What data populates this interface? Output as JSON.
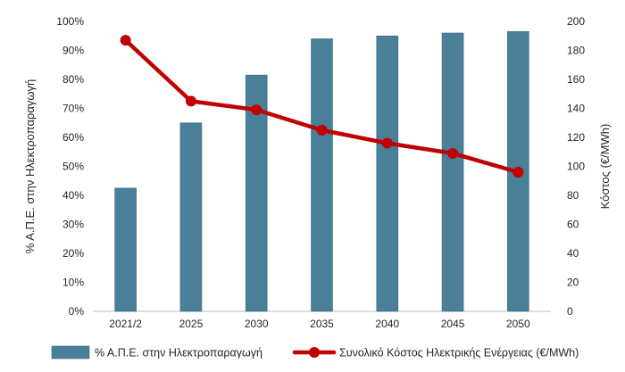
{
  "chart_data": {
    "type": "bar",
    "categories": [
      "2021/2",
      "2025",
      "2030",
      "2035",
      "2040",
      "2045",
      "2050"
    ],
    "series": [
      {
        "name": "% Α.Π.Ε. στην Ηλεκτροπαραγωγή",
        "type": "bar",
        "axis": "left",
        "values": [
          0.425,
          0.65,
          0.815,
          0.94,
          0.95,
          0.96,
          0.965
        ],
        "color": "#4a7f9a"
      },
      {
        "name": "Συνολικό Κόστος Ηλεκτρικής Ενέργειας (€/MWh)",
        "type": "line",
        "axis": "right",
        "values": [
          187,
          145,
          139,
          125,
          116,
          109,
          96
        ],
        "color": "#c00000"
      }
    ],
    "ylabel_left": "% Α.Π.Ε. στην Ηλεκτροπαραγωγή",
    "ylabel_right": "Κόστος (€/MWh)",
    "ylim_left": [
      0,
      1
    ],
    "yticks_left": [
      "0%",
      "10%",
      "20%",
      "30%",
      "40%",
      "50%",
      "60%",
      "70%",
      "80%",
      "90%",
      "100%"
    ],
    "ylim_right": [
      0,
      200
    ],
    "yticks_right": [
      "0",
      "20",
      "40",
      "60",
      "80",
      "100",
      "120",
      "140",
      "160",
      "180",
      "200"
    ],
    "grid": false,
    "legend_position": "bottom"
  }
}
